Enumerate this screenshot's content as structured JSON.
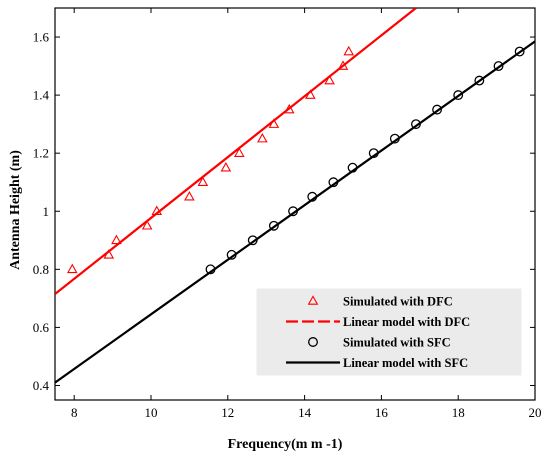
{
  "chart_data": {
    "type": "scatter",
    "title": "",
    "xlabel": "Frequency(m m -1)",
    "ylabel": "Antenna  Height (m)",
    "xlim": [
      7.5,
      20
    ],
    "ylim": [
      0.35,
      1.7
    ],
    "xticks": [
      8,
      10,
      12,
      14,
      16,
      18,
      20
    ],
    "yticks": [
      0.4,
      0.6,
      0.8,
      1.0,
      1.2,
      1.4,
      1.6
    ],
    "xtick_labels": [
      "8",
      "10",
      "12",
      "14",
      "16",
      "18",
      "20"
    ],
    "ytick_labels": [
      "0.4",
      "0.6",
      "0.8",
      "1",
      "1.2",
      "1.4",
      "1.6"
    ],
    "grid": false,
    "legend_position": "bottom-right",
    "series": [
      {
        "name": "Simulated with DFC",
        "kind": "scatter",
        "marker": "triangle",
        "color": "#ff0000",
        "x": [
          7.95,
          8.9,
          9.1,
          9.9,
          10.15,
          11.0,
          11.35,
          11.95,
          12.3,
          12.9,
          13.2,
          13.6,
          14.15,
          14.65,
          15.0,
          15.15
        ],
        "y": [
          0.8,
          0.85,
          0.9,
          0.95,
          1.0,
          1.05,
          1.1,
          1.15,
          1.2,
          1.25,
          1.3,
          1.35,
          1.4,
          1.45,
          1.5,
          1.55
        ]
      },
      {
        "name": "Linear model with DFC",
        "kind": "line",
        "color": "#ff0000",
        "x": [
          7.5,
          16.9
        ],
        "y": [
          0.715,
          1.7
        ]
      },
      {
        "name": "Simulated with SFC",
        "kind": "scatter",
        "marker": "circle",
        "color": "#000000",
        "x": [
          11.55,
          12.1,
          12.65,
          13.2,
          13.7,
          14.2,
          14.75,
          15.25,
          15.8,
          16.35,
          16.9,
          17.45,
          18.0,
          18.55,
          19.05,
          19.6
        ],
        "y": [
          0.8,
          0.85,
          0.9,
          0.95,
          1.0,
          1.05,
          1.1,
          1.15,
          1.2,
          1.25,
          1.3,
          1.35,
          1.4,
          1.45,
          1.5,
          1.55
        ]
      },
      {
        "name": "Linear model with SFC",
        "kind": "line",
        "color": "#000000",
        "x": [
          7.5,
          20
        ],
        "y": [
          0.41,
          1.585
        ]
      }
    ]
  }
}
